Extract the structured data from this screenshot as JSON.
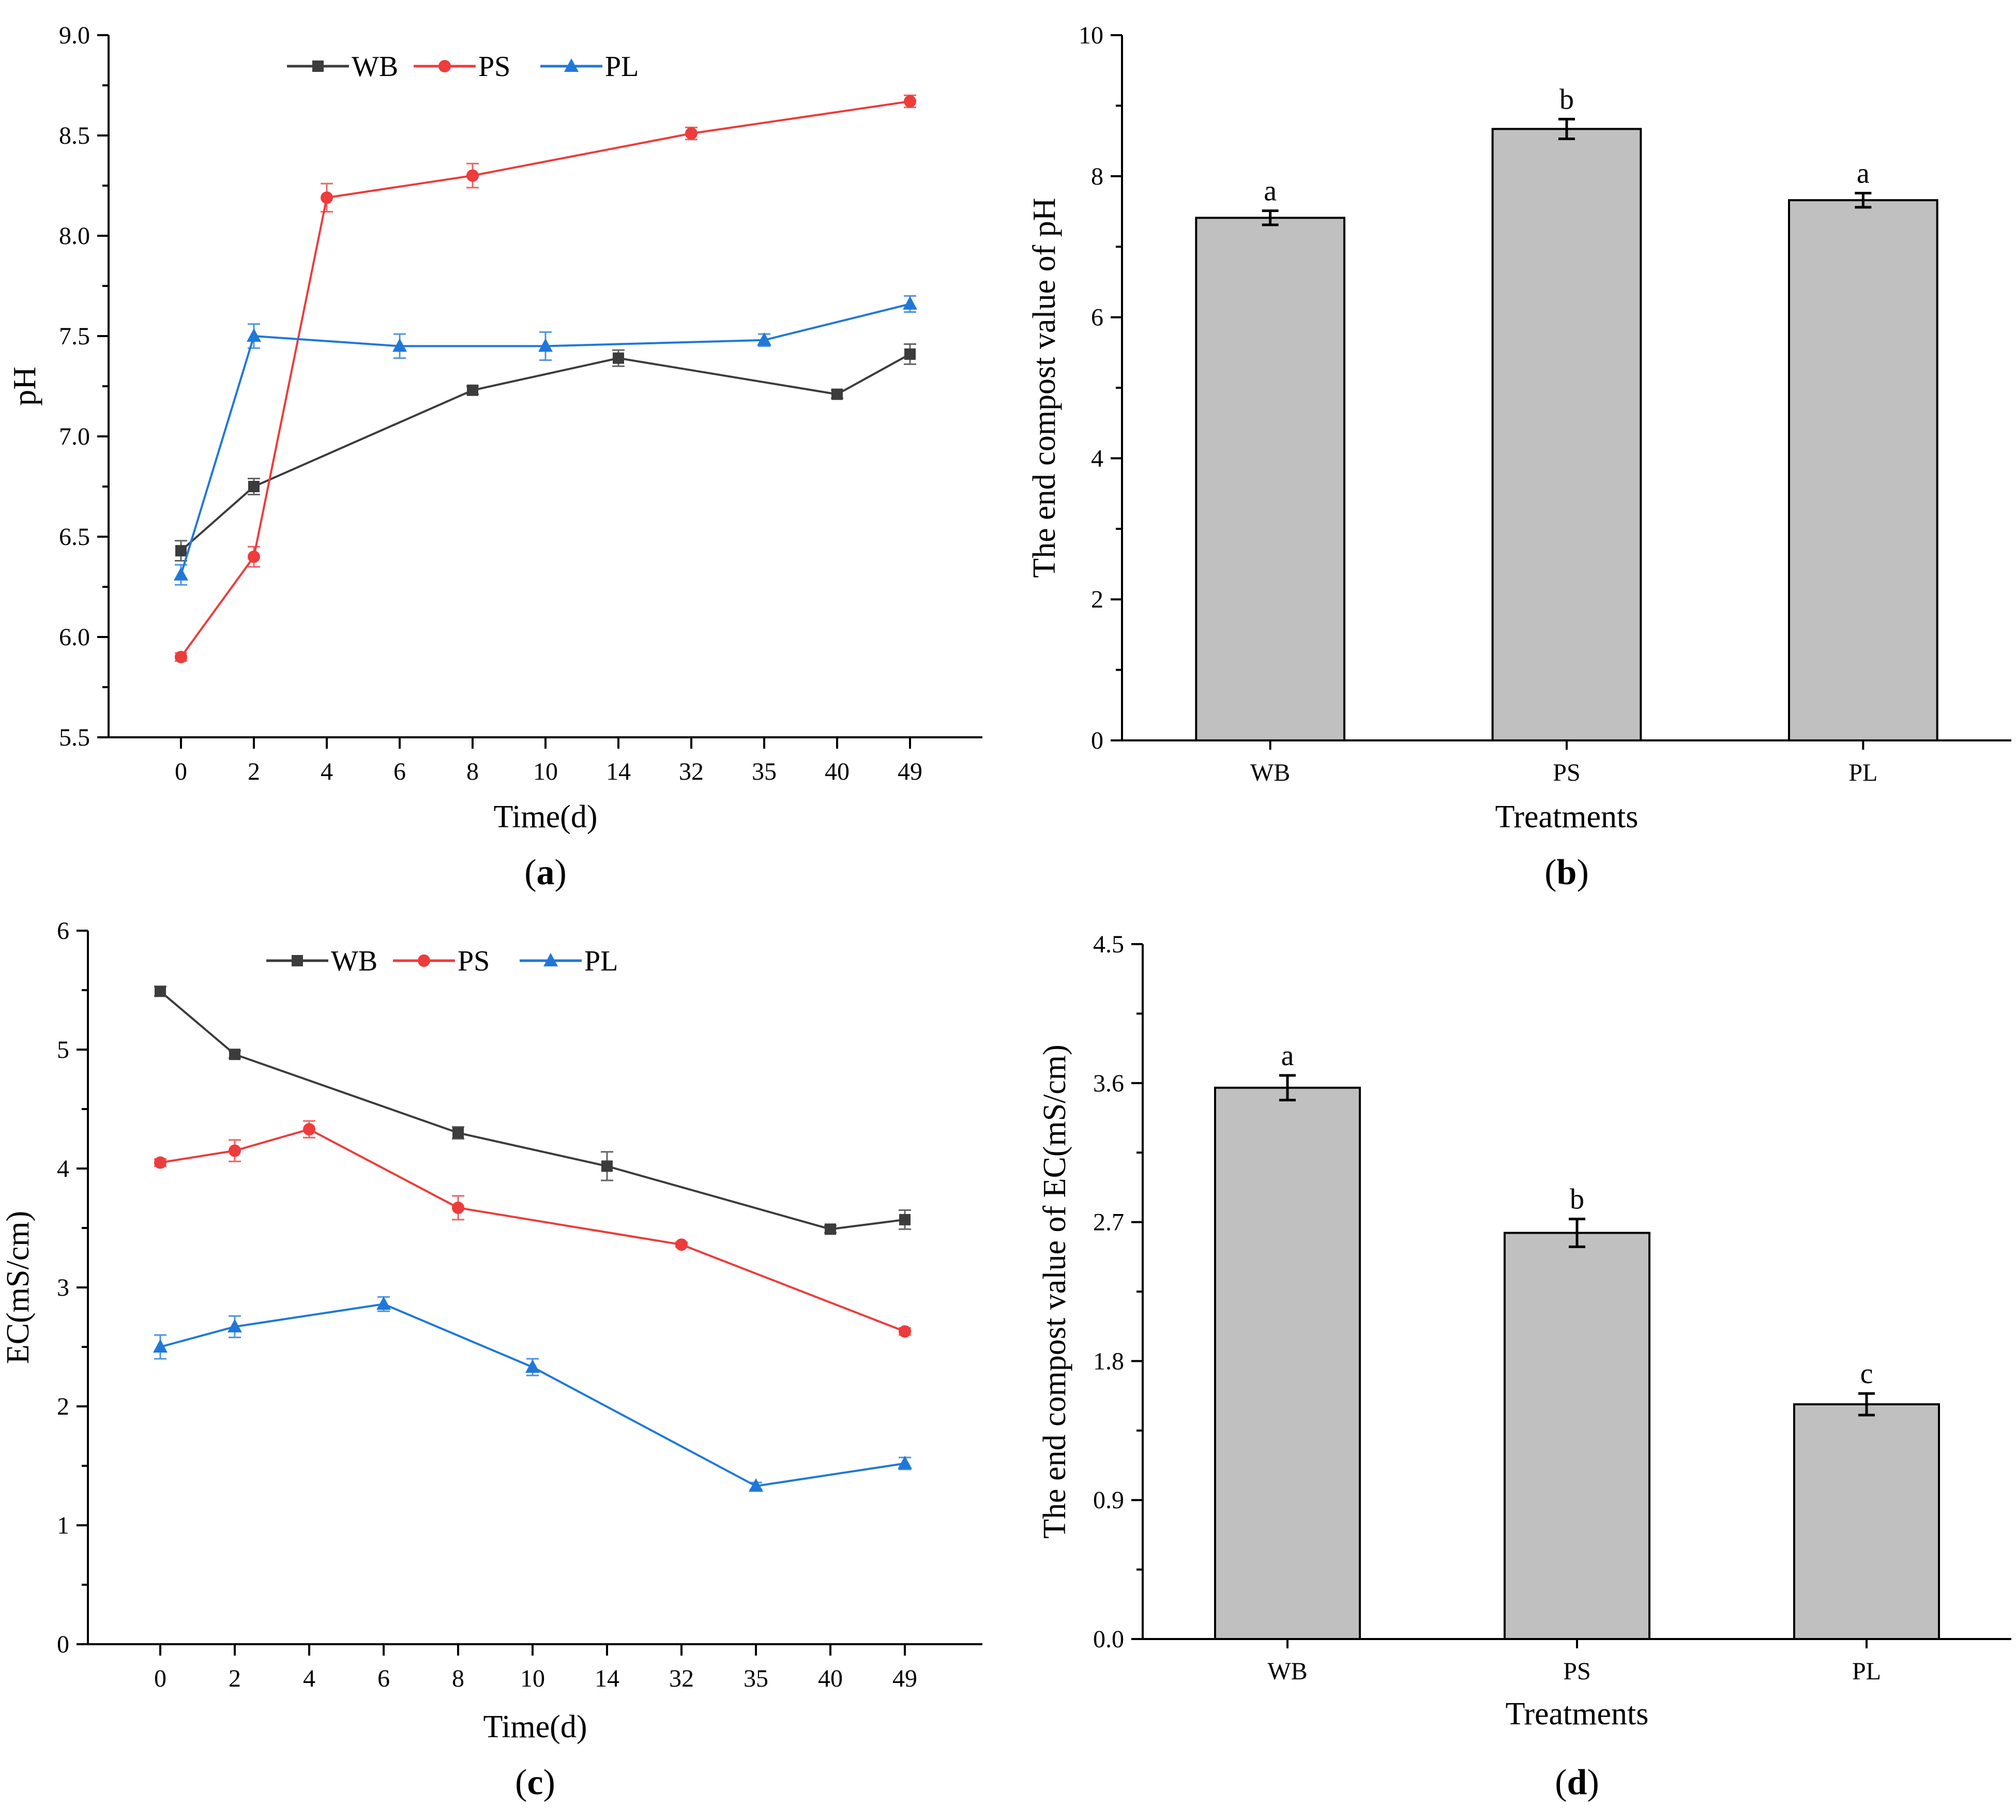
{
  "chart_data": [
    {
      "id": "a",
      "type": "line",
      "panel_label": "a",
      "xlabel": "Time(d)",
      "ylabel": "pH",
      "categories": [
        "0",
        "2",
        "4",
        "6",
        "8",
        "10",
        "14",
        "32",
        "35",
        "40",
        "49"
      ],
      "ylim": [
        5.5,
        9.0
      ],
      "yticks": [
        "5.5",
        "6.0",
        "6.5",
        "7.0",
        "7.5",
        "8.0",
        "8.5",
        "9.0"
      ],
      "legend": "top-center",
      "series": [
        {
          "name": "WB",
          "color": "#3c3c3c",
          "marker": "square",
          "points": [
            [
              0,
              6.43,
              0.05
            ],
            [
              1,
              6.75,
              0.04
            ],
            [
              4,
              7.23,
              0.02
            ],
            [
              6,
              7.39,
              0.04
            ],
            [
              9,
              7.21,
              0.02
            ],
            [
              10,
              7.41,
              0.05
            ]
          ]
        },
        {
          "name": "PS",
          "color": "#ee3b3b",
          "marker": "circle",
          "points": [
            [
              0,
              5.9,
              0.02
            ],
            [
              1,
              6.4,
              0.05
            ],
            [
              2,
              8.19,
              0.07
            ],
            [
              4,
              8.3,
              0.06
            ],
            [
              7,
              8.51,
              0.03
            ],
            [
              10,
              8.67,
              0.03
            ]
          ]
        },
        {
          "name": "PL",
          "color": "#1f78d8",
          "marker": "triangle",
          "points": [
            [
              0,
              6.31,
              0.05
            ],
            [
              1,
              7.5,
              0.06
            ],
            [
              3,
              7.45,
              0.06
            ],
            [
              5,
              7.45,
              0.07
            ],
            [
              8,
              7.48,
              0.03
            ],
            [
              10,
              7.66,
              0.04
            ]
          ]
        }
      ]
    },
    {
      "id": "b",
      "type": "bar",
      "panel_label": "b",
      "xlabel": "Treatments",
      "ylabel": "The end compost value of pH",
      "categories": [
        "WB",
        "PS",
        "PL"
      ],
      "values": [
        7.41,
        8.67,
        7.66
      ],
      "errors": [
        0.1,
        0.14,
        0.1
      ],
      "significance": [
        "a",
        "b",
        "a"
      ],
      "ylim": [
        0,
        10
      ],
      "yticks": [
        "0",
        "2",
        "4",
        "6",
        "8",
        "10"
      ]
    },
    {
      "id": "c",
      "type": "line",
      "panel_label": "c",
      "xlabel": "Time(d)",
      "ylabel": "EC(mS/cm)",
      "categories": [
        "0",
        "2",
        "4",
        "6",
        "8",
        "10",
        "14",
        "32",
        "35",
        "40",
        "49"
      ],
      "ylim": [
        0,
        6
      ],
      "yticks": [
        "0",
        "1",
        "2",
        "3",
        "4",
        "5",
        "6"
      ],
      "legend": "top-center",
      "series": [
        {
          "name": "WB",
          "color": "#3c3c3c",
          "marker": "square",
          "points": [
            [
              0,
              5.49,
              0.04
            ],
            [
              1,
              4.96,
              0.03
            ],
            [
              4,
              4.3,
              0.05
            ],
            [
              6,
              4.02,
              0.12
            ],
            [
              9,
              3.49,
              0.03
            ],
            [
              10,
              3.57,
              0.08
            ]
          ]
        },
        {
          "name": "PS",
          "color": "#ee3b3b",
          "marker": "circle",
          "points": [
            [
              0,
              4.05,
              0.03
            ],
            [
              1,
              4.15,
              0.09
            ],
            [
              2,
              4.33,
              0.07
            ],
            [
              4,
              3.67,
              0.1
            ],
            [
              7,
              3.36,
              0.02
            ],
            [
              10,
              2.63,
              0.03
            ]
          ]
        },
        {
          "name": "PL",
          "color": "#1f78d8",
          "marker": "triangle",
          "points": [
            [
              0,
              2.5,
              0.1
            ],
            [
              1,
              2.67,
              0.09
            ],
            [
              3,
              2.86,
              0.06
            ],
            [
              5,
              2.33,
              0.07
            ],
            [
              8,
              1.33,
              0.03
            ],
            [
              10,
              1.52,
              0.05
            ]
          ]
        }
      ]
    },
    {
      "id": "d",
      "type": "bar",
      "panel_label": "d",
      "xlabel": "Treatments",
      "ylabel": "The end compost value of EC(mS/cm)",
      "categories": [
        "WB",
        "PS",
        "PL"
      ],
      "values": [
        3.57,
        2.63,
        1.52
      ],
      "errors": [
        0.08,
        0.09,
        0.07
      ],
      "significance": [
        "a",
        "b",
        "c"
      ],
      "ylim": [
        0,
        4.5
      ],
      "yticks": [
        "0.0",
        "0.9",
        "1.8",
        "2.7",
        "3.6",
        "4.5"
      ]
    }
  ]
}
